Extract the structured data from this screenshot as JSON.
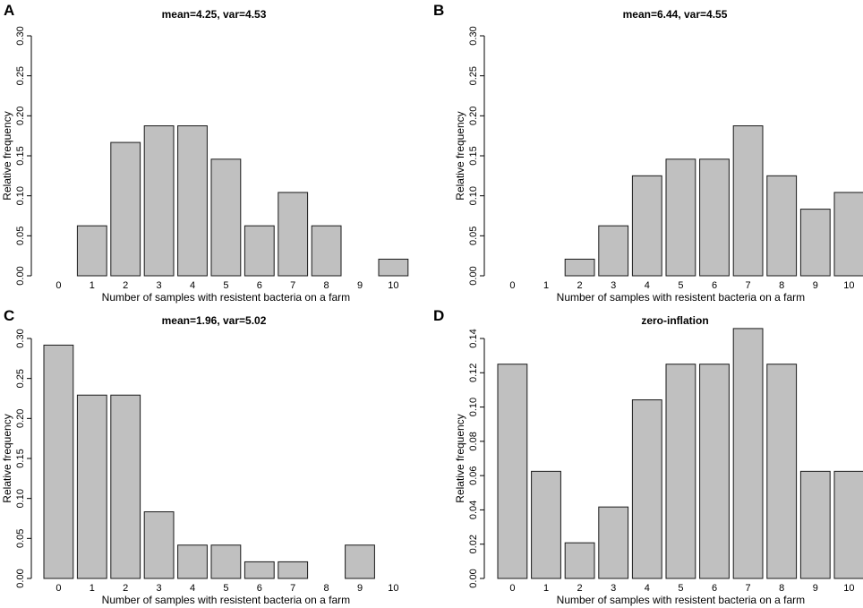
{
  "chart_data": [
    {
      "panel": "A",
      "type": "bar",
      "title": "mean=4.25, var=4.53",
      "xlabel": "Number of samples with resistent bacteria on a farm",
      "ylabel": "Relative frequency",
      "categories": [
        "0",
        "1",
        "2",
        "3",
        "4",
        "5",
        "6",
        "7",
        "8",
        "9",
        "10"
      ],
      "values": [
        0.0,
        0.0625,
        0.1667,
        0.1875,
        0.1875,
        0.1458,
        0.0625,
        0.1042,
        0.0625,
        0.0,
        0.0208
      ],
      "ylim": [
        0,
        0.3
      ],
      "yticks": [
        "0.00",
        "0.05",
        "0.10",
        "0.15",
        "0.20",
        "0.25",
        "0.30"
      ]
    },
    {
      "panel": "B",
      "type": "bar",
      "title": "mean=6.44, var=4.55",
      "xlabel": "Number of samples with resistent bacteria on a farm",
      "ylabel": "Relative frequency",
      "categories": [
        "0",
        "1",
        "2",
        "3",
        "4",
        "5",
        "6",
        "7",
        "8",
        "9",
        "10"
      ],
      "values": [
        0.0,
        0.0,
        0.0208,
        0.0625,
        0.125,
        0.1458,
        0.1458,
        0.1875,
        0.125,
        0.0833,
        0.1042
      ],
      "ylim": [
        0,
        0.3
      ],
      "yticks": [
        "0.00",
        "0.05",
        "0.10",
        "0.15",
        "0.20",
        "0.25",
        "0.30"
      ]
    },
    {
      "panel": "C",
      "type": "bar",
      "title": "mean=1.96, var=5.02",
      "xlabel": "Number of samples with resistent bacteria on a farm",
      "ylabel": "Relative frequency",
      "categories": [
        "0",
        "1",
        "2",
        "3",
        "4",
        "5",
        "6",
        "7",
        "8",
        "9",
        "10"
      ],
      "values": [
        0.2917,
        0.2292,
        0.2292,
        0.0833,
        0.0417,
        0.0417,
        0.0208,
        0.0208,
        0.0,
        0.0417,
        0.0
      ],
      "ylim": [
        0,
        0.3
      ],
      "yticks": [
        "0.00",
        "0.05",
        "0.10",
        "0.15",
        "0.20",
        "0.25",
        "0.30"
      ]
    },
    {
      "panel": "D",
      "type": "bar",
      "title": "zero-inflation",
      "xlabel": "Number of samples with resistent bacteria on a farm",
      "ylabel": "Relative frequency",
      "categories": [
        "0",
        "1",
        "2",
        "3",
        "4",
        "5",
        "6",
        "7",
        "8",
        "9",
        "10"
      ],
      "values": [
        0.125,
        0.0625,
        0.0208,
        0.0417,
        0.1042,
        0.125,
        0.125,
        0.1458,
        0.125,
        0.0625,
        0.0625
      ],
      "ylim": [
        0,
        0.14
      ],
      "yticks": [
        "0.00",
        "0.02",
        "0.04",
        "0.06",
        "0.08",
        "0.10",
        "0.12",
        "0.14"
      ]
    }
  ],
  "colors": {
    "bar_fill": "#c0c0c0",
    "bar_stroke": "#1a1a1a",
    "axis": "#000000"
  }
}
